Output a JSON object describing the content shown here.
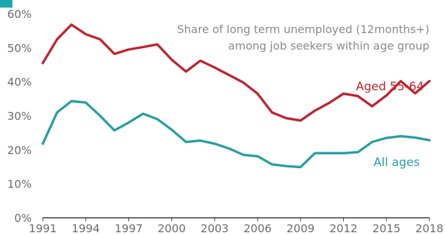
{
  "chart_data": {
    "type": "line",
    "title": "",
    "xlabel": "",
    "ylabel": "",
    "ylim": [
      0,
      60
    ],
    "xlim": [
      1991,
      2018
    ],
    "grid": false,
    "y_ticks": [
      "0%",
      "10%",
      "20%",
      "30%",
      "40%",
      "50%",
      "60%"
    ],
    "x_ticks": [
      "1991",
      "1994",
      "1997",
      "2000",
      "2003",
      "2006",
      "2009",
      "2012",
      "2015",
      "2018"
    ],
    "annotation_lines": [
      "Share of long term unemployed (12months+)",
      "among job seekers within age group"
    ],
    "x": [
      1991,
      1992,
      1993,
      1994,
      1995,
      1996,
      1997,
      1998,
      1999,
      2000,
      2001,
      2002,
      2003,
      2004,
      2005,
      2006,
      2007,
      2008,
      2009,
      2010,
      2011,
      2012,
      2013,
      2014,
      2015,
      2016,
      2017,
      2018
    ],
    "series": [
      {
        "name": "Aged 55-64",
        "color": "#c0232f",
        "values": [
          45.5,
          52.5,
          56.8,
          54.0,
          52.5,
          48.2,
          49.5,
          50.2,
          51.0,
          46.5,
          43.0,
          46.2,
          44.2,
          42.0,
          39.8,
          36.5,
          31.0,
          29.3,
          28.6,
          31.5,
          33.8,
          36.5,
          35.8,
          32.8,
          36.0,
          40.2,
          36.6,
          40.2
        ]
      },
      {
        "name": "All ages",
        "color": "#2a9ea3",
        "values": [
          21.8,
          31.0,
          34.3,
          33.9,
          30.0,
          25.7,
          28.0,
          30.6,
          29.0,
          25.9,
          22.3,
          22.7,
          21.8,
          20.4,
          18.5,
          18.1,
          15.7,
          15.2,
          14.9,
          19.0,
          19.0,
          19.0,
          19.3,
          22.3,
          23.5,
          24.0,
          23.6,
          22.8
        ]
      }
    ]
  }
}
